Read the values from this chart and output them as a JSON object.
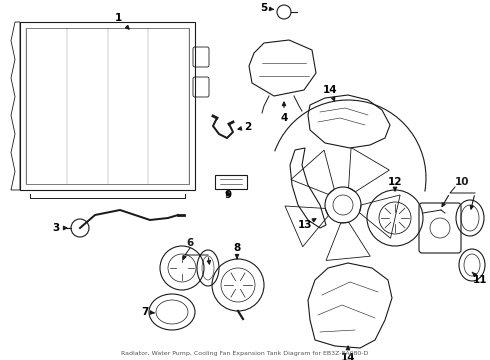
{
  "bg_color": "#ffffff",
  "line_color": "#1a1a1a",
  "text_color": "#000000",
  "subtitle": "Radiator, Water Pump, Cooling Fan Expansion Tank Diagram for EB3Z-8A080-D",
  "figsize": [
    4.9,
    3.6
  ],
  "dpi": 100,
  "label_fontsize": 7.5
}
